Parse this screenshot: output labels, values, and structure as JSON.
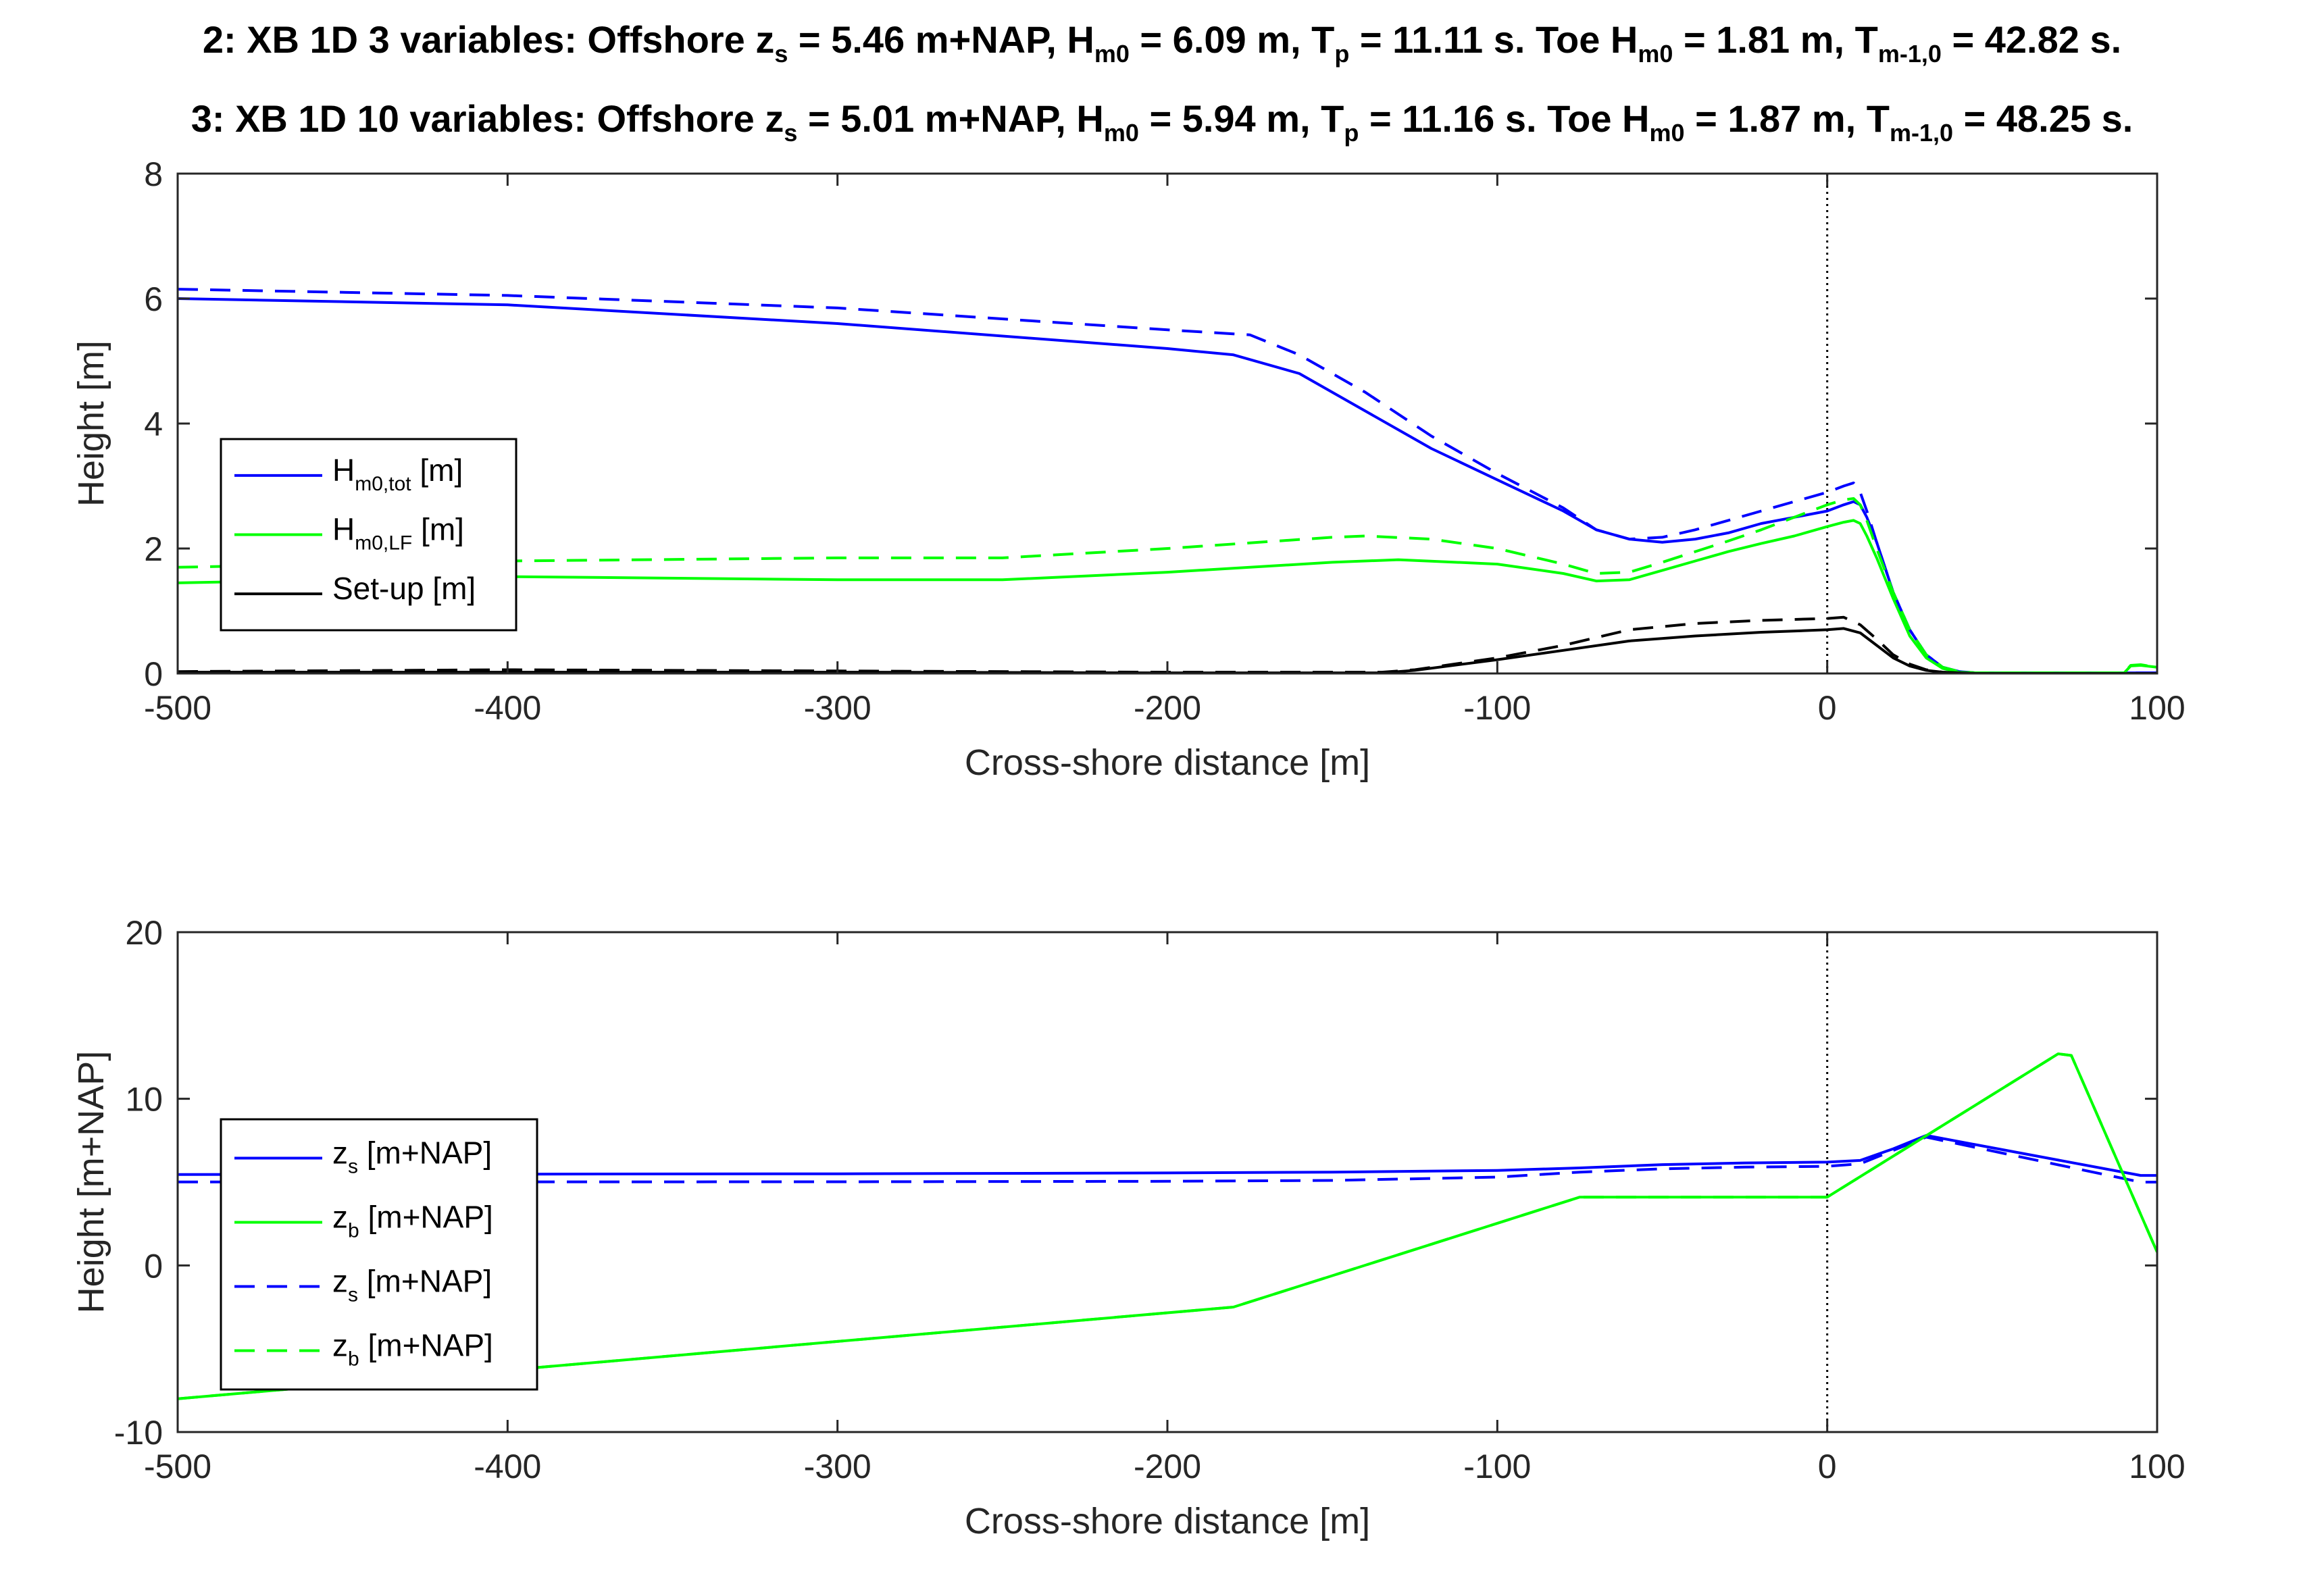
{
  "figure": {
    "title_lines": [
      {
        "segments": [
          {
            "t": "2: XB 1D 3 variables: Offshore z"
          },
          {
            "t": "s",
            "sub": true
          },
          {
            "t": " = 5.46 m+NAP, H"
          },
          {
            "t": "m0",
            "sub": true
          },
          {
            "t": " = 6.09 m, T"
          },
          {
            "t": "p",
            "sub": true
          },
          {
            "t": " = 11.11 s. Toe H"
          },
          {
            "t": "m0",
            "sub": true
          },
          {
            "t": " = 1.81 m, T"
          },
          {
            "t": "m-1,0",
            "sub": true
          },
          {
            "t": " = 42.82 s."
          }
        ]
      },
      {
        "segments": [
          {
            "t": "3: XB 1D 10 variables: Offshore z"
          },
          {
            "t": "s",
            "sub": true
          },
          {
            "t": " = 5.01 m+NAP, H"
          },
          {
            "t": "m0",
            "sub": true
          },
          {
            "t": " = 5.94 m, T"
          },
          {
            "t": "p",
            "sub": true
          },
          {
            "t": " = 11.16 s. Toe H"
          },
          {
            "t": "m0",
            "sub": true
          },
          {
            "t": " = 1.87 m, T"
          },
          {
            "t": "m-1,0",
            "sub": true
          },
          {
            "t": " = 48.25 s."
          }
        ]
      }
    ]
  },
  "colors": {
    "blue": "#0000ff",
    "green": "#00ff00",
    "black": "#000000",
    "axis": "#262626"
  },
  "chart_data": [
    {
      "type": "line",
      "id": "wave-height",
      "xlabel": "Cross-shore distance [m]",
      "ylabel": "Height [m]",
      "xlim": [
        -500,
        100
      ],
      "ylim": [
        0,
        8
      ],
      "xticks": [
        -500,
        -400,
        -300,
        -200,
        -100,
        0,
        100
      ],
      "yticks": [
        0,
        2,
        4,
        6,
        8
      ],
      "vline_x": 0,
      "legend": {
        "placement": "middle-left",
        "entries": [
          {
            "series": "hm0tot_3",
            "segments": [
              {
                "t": "H"
              },
              {
                "t": "m0,tot",
                "sub": true
              },
              {
                "t": " [m]"
              }
            ]
          },
          {
            "series": "hm0lf_3",
            "segments": [
              {
                "t": "H"
              },
              {
                "t": "m0,LF",
                "sub": true
              },
              {
                "t": " [m]"
              }
            ]
          },
          {
            "series": "setup_3",
            "segments": [
              {
                "t": "Set-up [m]"
              }
            ]
          }
        ]
      },
      "series": [
        {
          "name": "hm0tot_3",
          "color": "blue",
          "dash": false,
          "x": [
            -500,
            -400,
            -300,
            -200,
            -180,
            -160,
            -140,
            -120,
            -100,
            -80,
            -70,
            -60,
            -50,
            -40,
            -30,
            -20,
            -10,
            0,
            5,
            8,
            10,
            12,
            15,
            20,
            25,
            30,
            35,
            40,
            45,
            100
          ],
          "y": [
            6.0,
            5.9,
            5.6,
            5.2,
            5.1,
            4.8,
            4.2,
            3.6,
            3.1,
            2.6,
            2.3,
            2.15,
            2.1,
            2.15,
            2.25,
            2.4,
            2.5,
            2.6,
            2.7,
            2.75,
            2.7,
            2.5,
            2.1,
            1.3,
            0.7,
            0.3,
            0.1,
            0.03,
            0.01,
            0.01
          ]
        },
        {
          "name": "hm0tot_10",
          "color": "blue",
          "dash": true,
          "x": [
            -500,
            -400,
            -300,
            -200,
            -175,
            -160,
            -140,
            -120,
            -100,
            -80,
            -70,
            -60,
            -50,
            -40,
            -30,
            -20,
            -10,
            0,
            5,
            8,
            10,
            12,
            15,
            20,
            25,
            30,
            35,
            40,
            45,
            100
          ],
          "y": [
            6.15,
            6.05,
            5.85,
            5.5,
            5.42,
            5.1,
            4.5,
            3.8,
            3.2,
            2.65,
            2.3,
            2.15,
            2.18,
            2.3,
            2.45,
            2.6,
            2.75,
            2.9,
            3.0,
            3.05,
            2.9,
            2.6,
            2.1,
            1.3,
            0.7,
            0.3,
            0.1,
            0.03,
            0.01,
            0.01
          ]
        },
        {
          "name": "hm0lf_3",
          "color": "green",
          "dash": false,
          "x": [
            -500,
            -450,
            -400,
            -300,
            -250,
            -200,
            -150,
            -130,
            -100,
            -80,
            -70,
            -60,
            -50,
            -40,
            -30,
            -20,
            -10,
            0,
            5,
            8,
            10,
            12,
            15,
            20,
            25,
            30,
            35,
            40,
            45,
            90,
            92,
            95,
            100
          ],
          "y": [
            1.45,
            1.5,
            1.55,
            1.5,
            1.5,
            1.62,
            1.78,
            1.82,
            1.75,
            1.6,
            1.48,
            1.5,
            1.65,
            1.8,
            1.95,
            2.08,
            2.2,
            2.35,
            2.42,
            2.45,
            2.4,
            2.2,
            1.85,
            1.2,
            0.6,
            0.25,
            0.08,
            0.02,
            0.01,
            0.01,
            0.12,
            0.13,
            0.1
          ]
        },
        {
          "name": "hm0lf_10",
          "color": "green",
          "dash": true,
          "x": [
            -500,
            -450,
            -400,
            -300,
            -250,
            -200,
            -150,
            -140,
            -120,
            -100,
            -80,
            -70,
            -60,
            -50,
            -40,
            -30,
            -20,
            -10,
            0,
            5,
            8,
            10,
            12,
            15,
            20,
            25,
            30,
            35,
            40,
            45,
            90,
            92,
            95,
            100
          ],
          "y": [
            1.7,
            1.75,
            1.8,
            1.85,
            1.85,
            2.0,
            2.18,
            2.2,
            2.15,
            2.0,
            1.75,
            1.6,
            1.62,
            1.78,
            1.95,
            2.12,
            2.3,
            2.5,
            2.7,
            2.78,
            2.8,
            2.7,
            2.45,
            2.0,
            1.3,
            0.7,
            0.3,
            0.1,
            0.03,
            0.01,
            0.01,
            0.13,
            0.14,
            0.1
          ]
        },
        {
          "name": "setup_3",
          "color": "black",
          "dash": false,
          "x": [
            -500,
            -300,
            -200,
            -135,
            -125,
            -100,
            -80,
            -60,
            -40,
            -20,
            0,
            5,
            10,
            15,
            20,
            25,
            30,
            35,
            40,
            45,
            100
          ],
          "y": [
            0.02,
            0.02,
            0.01,
            0.01,
            0.05,
            0.22,
            0.37,
            0.52,
            0.6,
            0.66,
            0.7,
            0.72,
            0.65,
            0.45,
            0.25,
            0.12,
            0.05,
            0.02,
            0.01,
            0.0,
            0.0
          ]
        },
        {
          "name": "setup_10",
          "color": "black",
          "dash": true,
          "x": [
            -500,
            -400,
            -300,
            -200,
            -135,
            -125,
            -100,
            -80,
            -60,
            -40,
            -20,
            0,
            5,
            10,
            15,
            20,
            25,
            30,
            35,
            40,
            45,
            100
          ],
          "y": [
            0.03,
            0.06,
            0.04,
            0.02,
            0.02,
            0.06,
            0.25,
            0.45,
            0.7,
            0.8,
            0.85,
            0.88,
            0.9,
            0.78,
            0.55,
            0.3,
            0.15,
            0.06,
            0.02,
            0.01,
            0.0,
            0.0
          ]
        }
      ]
    },
    {
      "type": "line",
      "id": "water-bed-level",
      "xlabel": "Cross-shore distance [m]",
      "ylabel": "Height [m+NAP]",
      "xlim": [
        -500,
        100
      ],
      "ylim": [
        -10,
        20
      ],
      "xticks": [
        -500,
        -400,
        -300,
        -200,
        -100,
        0,
        100
      ],
      "yticks": [
        -10,
        0,
        10,
        20
      ],
      "vline_x": 0,
      "legend": {
        "placement": "lower-left",
        "entries": [
          {
            "series": "zs_3",
            "segments": [
              {
                "t": "z"
              },
              {
                "t": "s",
                "sub": true
              },
              {
                "t": " [m+NAP]"
              }
            ]
          },
          {
            "series": "zb_3",
            "segments": [
              {
                "t": "z"
              },
              {
                "t": "b",
                "sub": true
              },
              {
                "t": " [m+NAP]"
              }
            ]
          },
          {
            "series": "zs_10",
            "segments": [
              {
                "t": "z"
              },
              {
                "t": "s",
                "sub": true
              },
              {
                "t": " [m+NAP]"
              }
            ]
          },
          {
            "series": "zb_10",
            "segments": [
              {
                "t": "z"
              },
              {
                "t": "b",
                "sub": true
              },
              {
                "t": " [m+NAP]"
              }
            ]
          }
        ]
      },
      "series": [
        {
          "name": "zs_3",
          "color": "blue",
          "dash": false,
          "x": [
            -500,
            -300,
            -200,
            -150,
            -100,
            -75,
            -50,
            -25,
            0,
            10,
            20,
            30,
            95,
            100
          ],
          "y": [
            5.46,
            5.5,
            5.55,
            5.6,
            5.7,
            5.85,
            6.05,
            6.15,
            6.2,
            6.3,
            7.0,
            7.8,
            5.4,
            5.4
          ]
        },
        {
          "name": "zs_10",
          "color": "blue",
          "dash": true,
          "x": [
            -500,
            -300,
            -200,
            -150,
            -100,
            -75,
            -50,
            -25,
            0,
            10,
            20,
            30,
            95,
            100
          ],
          "y": [
            5.01,
            5.02,
            5.05,
            5.1,
            5.3,
            5.6,
            5.8,
            5.9,
            5.95,
            6.1,
            6.9,
            7.7,
            5.0,
            5.0
          ]
        },
        {
          "name": "zb_3",
          "color": "green",
          "dash": false,
          "x": [
            -500,
            -180,
            -75,
            0,
            70,
            74,
            100
          ],
          "y": [
            -8.0,
            -2.5,
            4.1,
            4.1,
            12.7,
            12.6,
            0.8
          ]
        },
        {
          "name": "zb_10",
          "color": "green",
          "dash": true,
          "x": [
            -500,
            -180,
            -75,
            0,
            70,
            74,
            100
          ],
          "y": [
            -8.0,
            -2.5,
            4.1,
            4.1,
            12.7,
            12.6,
            0.8
          ]
        }
      ]
    }
  ]
}
